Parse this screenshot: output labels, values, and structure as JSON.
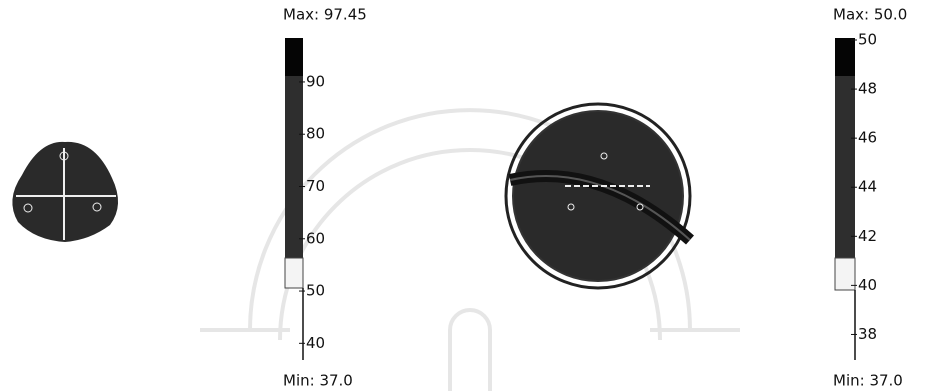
{
  "chart_data": [
    {
      "type": "colorbar",
      "max_label": "Max: 97.45",
      "min_label": "Min: 37.0",
      "ylim": [
        37.0,
        97.45
      ],
      "yticks": [
        40,
        50,
        60,
        70,
        80,
        90
      ]
    },
    {
      "type": "colorbar",
      "max_label": "Max: 50.0",
      "min_label": "Min: 37.0",
      "ylim": [
        37.0,
        50.0
      ],
      "yticks": [
        38,
        40,
        42,
        44,
        46,
        48,
        50
      ]
    }
  ]
}
